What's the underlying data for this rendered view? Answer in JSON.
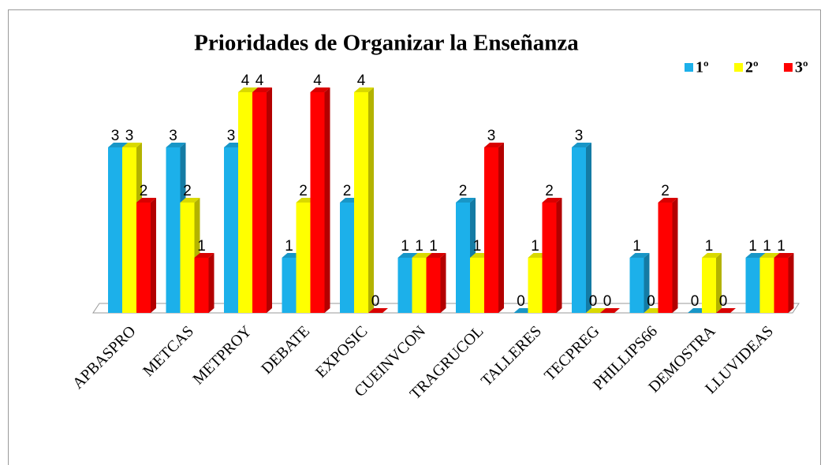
{
  "chart_data": {
    "type": "bar3d",
    "title": "Prioridades de Organizar la Enseñanza",
    "categories": [
      "APBASPRO",
      "METCAS",
      "METPROY",
      "DEBATE",
      "EXPOSIC",
      "CUEINVCON",
      "TRAGRUCOL",
      "TALLERES",
      "TECPREG",
      "PHILLIPS66",
      "DEMOSTRA",
      "LLUVIDEAS"
    ],
    "series": [
      {
        "name": "1º",
        "color": "#1cb0ea",
        "values": [
          3,
          3,
          3,
          1,
          2,
          1,
          2,
          0,
          3,
          1,
          0,
          1
        ]
      },
      {
        "name": "2º",
        "color": "#ffff00",
        "values": [
          3,
          2,
          4,
          2,
          4,
          1,
          1,
          1,
          0,
          0,
          1,
          1
        ]
      },
      {
        "name": "3º",
        "color": "#ff0000",
        "values": [
          2,
          1,
          4,
          4,
          0,
          1,
          3,
          2,
          0,
          2,
          0,
          1
        ]
      }
    ],
    "legend": "top-right"
  }
}
